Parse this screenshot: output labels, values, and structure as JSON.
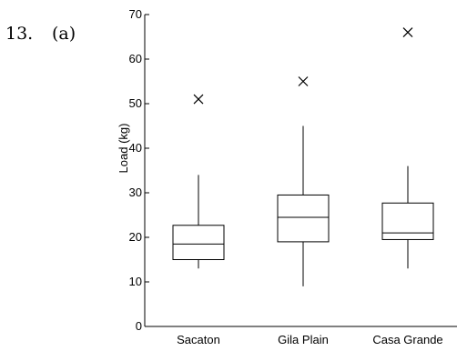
{
  "problem": {
    "number": "13.",
    "part": "(a)"
  },
  "chart_data": {
    "type": "box",
    "title": "",
    "xlabel": "",
    "ylabel": "Load (kg)",
    "ylim": [
      0,
      70
    ],
    "yticks": [
      0,
      10,
      20,
      30,
      40,
      50,
      60,
      70
    ],
    "categories": [
      "Sacaton",
      "Gila Plain",
      "Casa Grande"
    ],
    "boxes": [
      {
        "name": "Sacaton",
        "whisker_low": 13,
        "q1": 15,
        "median": 18.5,
        "q3": 22.7,
        "whisker_high": 34,
        "outliers": [
          51
        ]
      },
      {
        "name": "Gila Plain",
        "whisker_low": 9,
        "q1": 19,
        "median": 24.5,
        "q3": 29.5,
        "whisker_high": 45,
        "outliers": [
          55
        ]
      },
      {
        "name": "Casa Grande",
        "whisker_low": 13,
        "q1": 19.5,
        "median": 21,
        "q3": 27.7,
        "whisker_high": 36,
        "outliers": [
          66
        ]
      }
    ],
    "grid": false,
    "outlier_marker": "x"
  }
}
